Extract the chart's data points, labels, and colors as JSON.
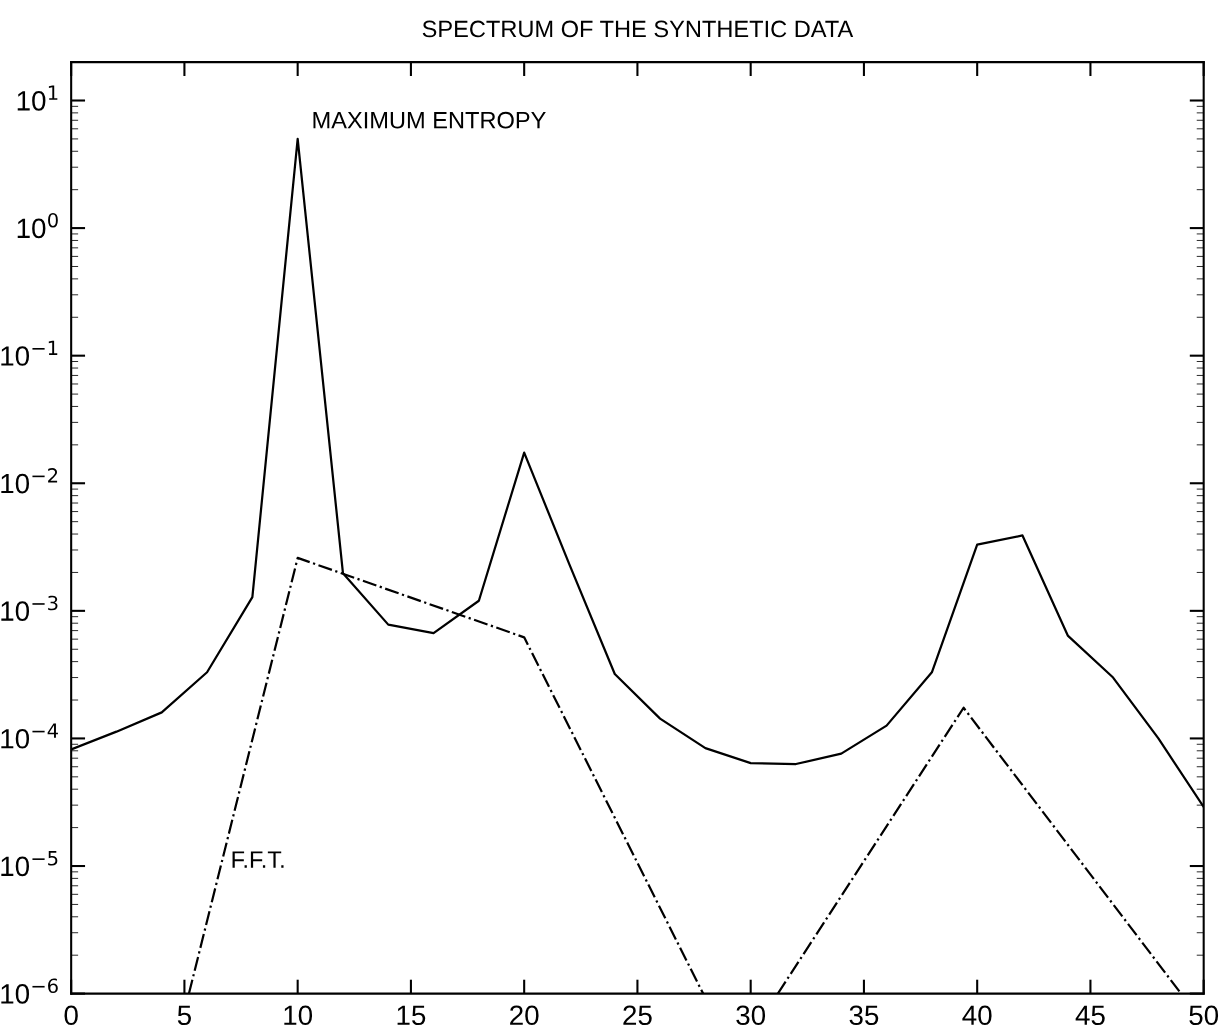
{
  "chart_data": {
    "type": "line",
    "title": "SPECTRUM OF THE SYNTHETIC DATA",
    "series": [
      {
        "name": "MAXIMUM ENTROPY",
        "color": "#000000",
        "line_style": "solid",
        "x": [
          0,
          2,
          4,
          6,
          8,
          10,
          12,
          14,
          16,
          18,
          20,
          22,
          24,
          26,
          28,
          30,
          32,
          34,
          36,
          38,
          40,
          42,
          44,
          46,
          48,
          50
        ],
        "values": [
          8.2e-05,
          0.000113,
          0.00016,
          0.00033,
          0.00128,
          5.0,
          0.00197,
          0.00078,
          0.00067,
          0.0012,
          0.0174,
          0.0023,
          0.00032,
          0.000143,
          8.4e-05,
          6.4e-05,
          6.3e-05,
          7.6e-05,
          0.000126,
          0.00033,
          0.0033,
          0.0039,
          0.00064,
          0.0003,
          0.0001,
          2.9e-05
        ]
      },
      {
        "name": "F.F.T.",
        "color": "#000000",
        "line_style": "dashdot",
        "x": [
          5.2,
          10,
          20,
          27.9,
          29.5,
          31.2,
          39.4,
          49.0
        ],
        "values": [
          1e-06,
          0.0026,
          0.00062,
          1e-06,
          null,
          1e-06,
          0.000174,
          1e-06
        ]
      }
    ],
    "log": "y",
    "xlim": [
      0,
      50
    ],
    "xticks": [
      0,
      5,
      10,
      15,
      20,
      25,
      30,
      35,
      40,
      45,
      50
    ],
    "ylim": [
      1e-06,
      20
    ],
    "yticks": [
      {
        "value": 1e-06,
        "label": "10$^{−6}$"
      },
      {
        "value": 1e-05,
        "label": "10$^{−5}$"
      },
      {
        "value": 0.0001,
        "label": "10$^{−4}$"
      },
      {
        "value": 0.001,
        "label": "10$^{−3}$"
      },
      {
        "value": 0.01,
        "label": "10$^{−2}$"
      },
      {
        "value": 0.1,
        "label": "10$^{−1}$"
      },
      {
        "value": 1,
        "label": "10$^{0}$"
      },
      {
        "value": 10,
        "label": "10$^{1}$"
      }
    ],
    "grid": false,
    "legend": false
  }
}
